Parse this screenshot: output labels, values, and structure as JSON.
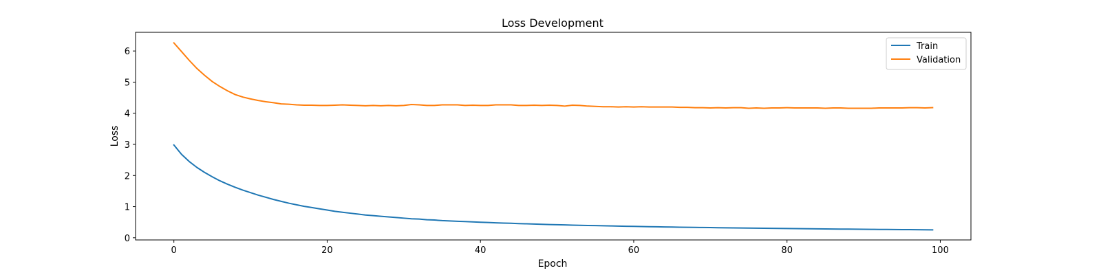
{
  "chart_data": {
    "type": "line",
    "title": "Loss Development",
    "xlabel": "Epoch",
    "ylabel": "Loss",
    "xlim": [
      -5,
      104
    ],
    "ylim": [
      -0.07,
      6.6
    ],
    "xticks": [
      0,
      20,
      40,
      60,
      80,
      100
    ],
    "yticks": [
      0,
      1,
      2,
      3,
      4,
      5,
      6
    ],
    "grid": false,
    "legend_position": "top-right",
    "series": [
      {
        "name": "Train",
        "color": "#1f77b4",
        "x": [
          0,
          1,
          2,
          3,
          4,
          5,
          6,
          7,
          8,
          9,
          10,
          11,
          12,
          13,
          14,
          15,
          16,
          17,
          18,
          19,
          20,
          21,
          22,
          23,
          24,
          25,
          26,
          27,
          28,
          29,
          30,
          31,
          32,
          33,
          34,
          35,
          36,
          37,
          38,
          39,
          40,
          41,
          42,
          43,
          44,
          45,
          46,
          47,
          48,
          49,
          50,
          51,
          52,
          53,
          54,
          55,
          56,
          57,
          58,
          59,
          60,
          61,
          62,
          63,
          64,
          65,
          66,
          67,
          68,
          69,
          70,
          71,
          72,
          73,
          74,
          75,
          76,
          77,
          78,
          79,
          80,
          81,
          82,
          83,
          84,
          85,
          86,
          87,
          88,
          89,
          90,
          91,
          92,
          93,
          94,
          95,
          96,
          97,
          98,
          99
        ],
        "y": [
          2.98,
          2.68,
          2.45,
          2.26,
          2.1,
          1.96,
          1.83,
          1.72,
          1.62,
          1.53,
          1.45,
          1.37,
          1.3,
          1.23,
          1.17,
          1.11,
          1.06,
          1.01,
          0.97,
          0.93,
          0.89,
          0.85,
          0.82,
          0.79,
          0.76,
          0.73,
          0.71,
          0.69,
          0.67,
          0.65,
          0.63,
          0.61,
          0.6,
          0.58,
          0.57,
          0.55,
          0.54,
          0.53,
          0.52,
          0.51,
          0.5,
          0.49,
          0.48,
          0.47,
          0.465,
          0.455,
          0.448,
          0.44,
          0.432,
          0.425,
          0.418,
          0.412,
          0.405,
          0.4,
          0.395,
          0.39,
          0.385,
          0.38,
          0.375,
          0.37,
          0.365,
          0.36,
          0.356,
          0.352,
          0.348,
          0.344,
          0.34,
          0.337,
          0.333,
          0.33,
          0.327,
          0.323,
          0.32,
          0.317,
          0.314,
          0.311,
          0.308,
          0.305,
          0.302,
          0.299,
          0.297,
          0.294,
          0.291,
          0.289,
          0.286,
          0.284,
          0.281,
          0.279,
          0.277,
          0.274,
          0.272,
          0.27,
          0.268,
          0.266,
          0.264,
          0.262,
          0.26,
          0.258,
          0.256,
          0.254
        ]
      },
      {
        "name": "Validation",
        "color": "#ff7f0e",
        "x": [
          0,
          1,
          2,
          3,
          4,
          5,
          6,
          7,
          8,
          9,
          10,
          11,
          12,
          13,
          14,
          15,
          16,
          17,
          18,
          19,
          20,
          21,
          22,
          23,
          24,
          25,
          26,
          27,
          28,
          29,
          30,
          31,
          32,
          33,
          34,
          35,
          36,
          37,
          38,
          39,
          40,
          41,
          42,
          43,
          44,
          45,
          46,
          47,
          48,
          49,
          50,
          51,
          52,
          53,
          54,
          55,
          56,
          57,
          58,
          59,
          60,
          61,
          62,
          63,
          64,
          65,
          66,
          67,
          68,
          69,
          70,
          71,
          72,
          73,
          74,
          75,
          76,
          77,
          78,
          79,
          80,
          81,
          82,
          83,
          84,
          85,
          86,
          87,
          88,
          89,
          90,
          91,
          92,
          93,
          94,
          95,
          96,
          97,
          98,
          99
        ],
        "y": [
          6.26,
          5.98,
          5.7,
          5.44,
          5.22,
          5.02,
          4.86,
          4.72,
          4.6,
          4.52,
          4.46,
          4.41,
          4.37,
          4.34,
          4.3,
          4.29,
          4.27,
          4.26,
          4.26,
          4.25,
          4.25,
          4.26,
          4.27,
          4.26,
          4.25,
          4.24,
          4.25,
          4.24,
          4.25,
          4.24,
          4.25,
          4.28,
          4.27,
          4.25,
          4.25,
          4.27,
          4.27,
          4.27,
          4.25,
          4.26,
          4.25,
          4.25,
          4.27,
          4.27,
          4.27,
          4.25,
          4.25,
          4.26,
          4.25,
          4.26,
          4.25,
          4.23,
          4.26,
          4.25,
          4.23,
          4.22,
          4.21,
          4.21,
          4.2,
          4.21,
          4.2,
          4.21,
          4.2,
          4.2,
          4.2,
          4.2,
          4.19,
          4.19,
          4.18,
          4.18,
          4.17,
          4.18,
          4.17,
          4.18,
          4.18,
          4.16,
          4.17,
          4.16,
          4.17,
          4.17,
          4.18,
          4.17,
          4.17,
          4.17,
          4.17,
          4.16,
          4.17,
          4.17,
          4.16,
          4.16,
          4.16,
          4.16,
          4.17,
          4.17,
          4.17,
          4.17,
          4.18,
          4.18,
          4.17,
          4.18
        ]
      }
    ]
  }
}
